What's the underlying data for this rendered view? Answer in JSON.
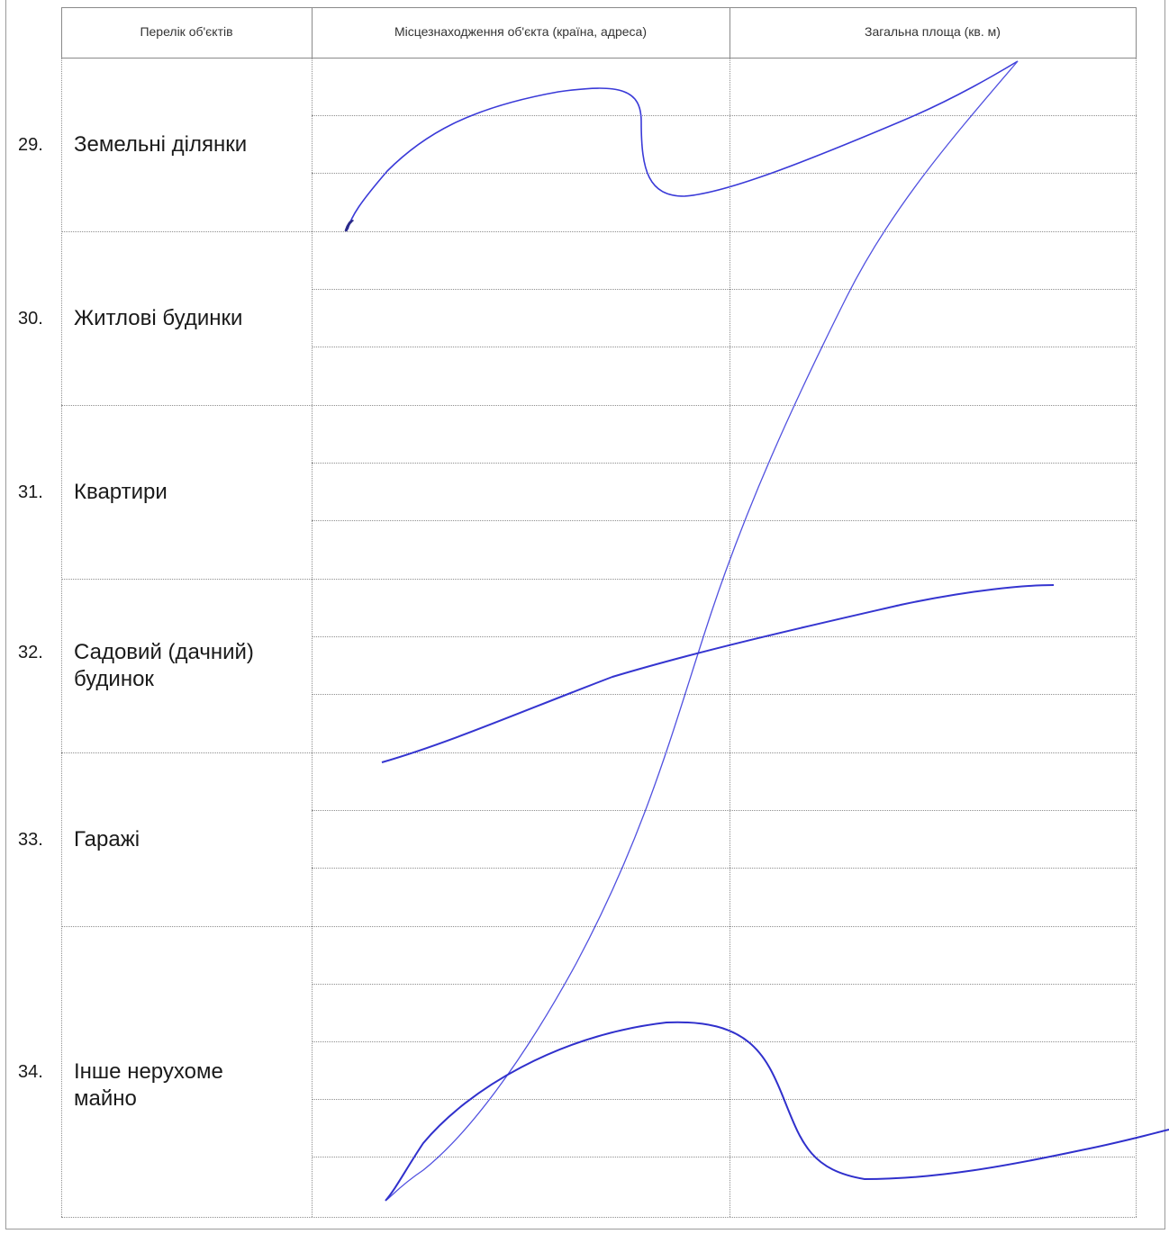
{
  "header": {
    "col_objects": "Перелік об'єктів",
    "col_location": "Місцезнаходження об'єкта (країна, адреса)",
    "col_area": "Загальна площа (кв. м)"
  },
  "rows": [
    {
      "number": "29.",
      "label": "Земельні ділянки"
    },
    {
      "number": "30.",
      "label": "Житлові будинки"
    },
    {
      "number": "31.",
      "label": "Квартири"
    },
    {
      "number": "32.",
      "label": "Садовий (дачний)\nбудинок"
    },
    {
      "number": "33.",
      "label": "Гаражі"
    },
    {
      "number": "34.",
      "label": "Інше нерухоме\nмайно"
    }
  ],
  "ink_color": "#3a3ad8"
}
